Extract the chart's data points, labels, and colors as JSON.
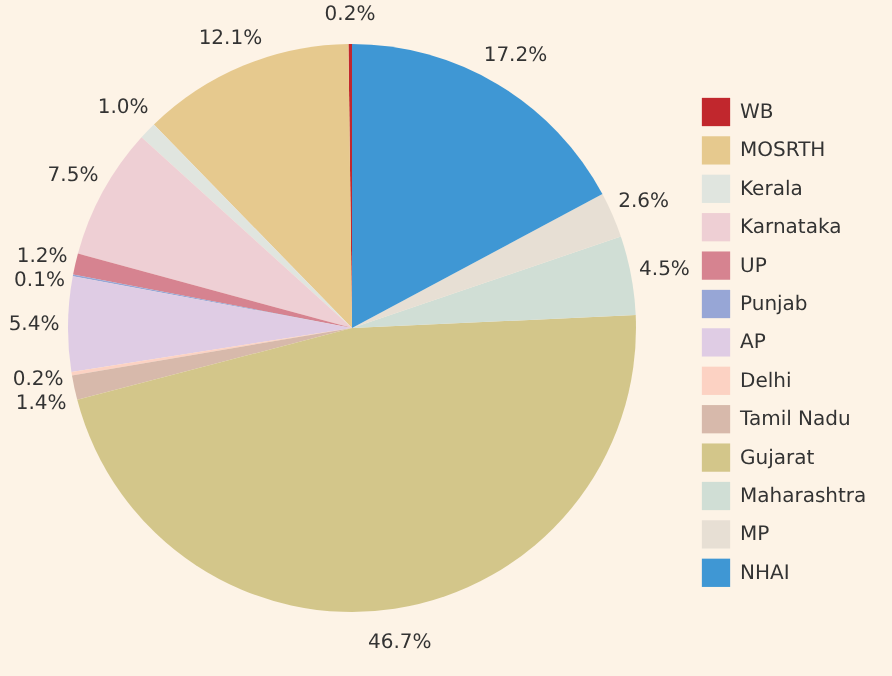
{
  "chart_data": {
    "type": "pie",
    "categories": [
      "WB",
      "MOSRTH",
      "Kerala",
      "Karnataka",
      "UP",
      "Punjab",
      "AP",
      "Delhi",
      "Tamil Nadu",
      "Gujarat",
      "Maharashtra",
      "MP",
      "NHAI"
    ],
    "values": [
      0.2,
      12.1,
      1.0,
      7.5,
      1.2,
      0.1,
      5.4,
      0.2,
      1.4,
      46.7,
      4.5,
      2.6,
      17.2
    ],
    "value_labels": [
      "0.2%",
      "12.1%",
      "1.0%",
      "7.5%",
      "1.2%",
      "0.1%",
      "5.4%",
      "0.2%",
      "1.4%",
      "46.7%",
      "4.5%",
      "2.6%",
      "17.2%"
    ],
    "colors": [
      "#c1272d",
      "#e6c98e",
      "#e0e5df",
      "#eecfd4",
      "#d68390",
      "#97a6d6",
      "#dfcce4",
      "#fcd2c3",
      "#d7b9ab",
      "#d3c68a",
      "#d0ded5",
      "#e7dfd4",
      "#3f97d4"
    ],
    "legend": "right"
  }
}
